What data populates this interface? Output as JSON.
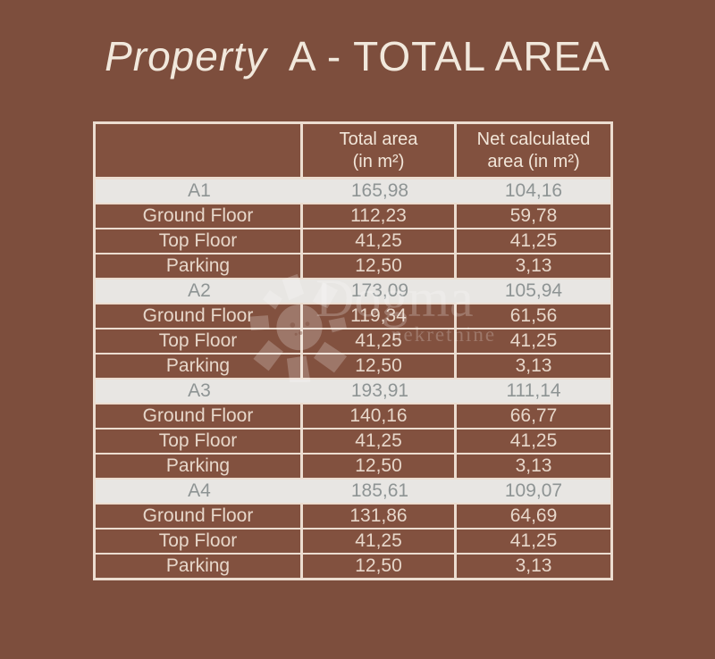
{
  "title": {
    "word_italic": "Property",
    "word_rest": "A - TOTAL AREA"
  },
  "watermark": {
    "brand": "Dogma",
    "subtitle": "nekretnine",
    "logo": "flower-pinwheel-icon"
  },
  "table": {
    "header": {
      "col_label": "",
      "col_total_line1": "Total area",
      "col_total_line2": "(in m²)",
      "col_net_line1": "Net calculated",
      "col_net_line2": "area (in m²)"
    },
    "sections": [
      {
        "name": "A1",
        "total": "165,98",
        "net": "104,16",
        "rows": [
          {
            "label": "Ground Floor",
            "total": "112,23",
            "net": "59,78"
          },
          {
            "label": "Top Floor",
            "total": "41,25",
            "net": "41,25"
          },
          {
            "label": "Parking",
            "total": "12,50",
            "net": "3,13"
          }
        ]
      },
      {
        "name": "A2",
        "total": "173,09",
        "net": "105,94",
        "rows": [
          {
            "label": "Ground Floor",
            "total": "119,34",
            "net": "61,56"
          },
          {
            "label": "Top Floor",
            "total": "41,25",
            "net": "41,25"
          },
          {
            "label": "Parking",
            "total": "12,50",
            "net": "3,13"
          }
        ]
      },
      {
        "name": "A3",
        "total": "193,91",
        "net": "111,14",
        "rows": [
          {
            "label": "Ground Floor",
            "total": "140,16",
            "net": "66,77"
          },
          {
            "label": "Top Floor",
            "total": "41,25",
            "net": "41,25"
          },
          {
            "label": "Parking",
            "total": "12,50",
            "net": "3,13"
          }
        ]
      },
      {
        "name": "A4",
        "total": "185,61",
        "net": "109,07",
        "rows": [
          {
            "label": "Ground Floor",
            "total": "131,86",
            "net": "64,69"
          },
          {
            "label": "Top Floor",
            "total": "41,25",
            "net": "41,25"
          },
          {
            "label": "Parking",
            "total": "12,50",
            "net": "3,13"
          }
        ]
      }
    ]
  },
  "colors": {
    "background": "#7d4e3d",
    "cell_brown": "#82513f",
    "border_cream": "#ecddd0",
    "section_row_bg": "#e8e6e3",
    "section_row_text": "#8e9494",
    "cell_text": "#e7d7ca",
    "header_text": "#f2e6d9",
    "title_text": "#f1e8dc"
  }
}
